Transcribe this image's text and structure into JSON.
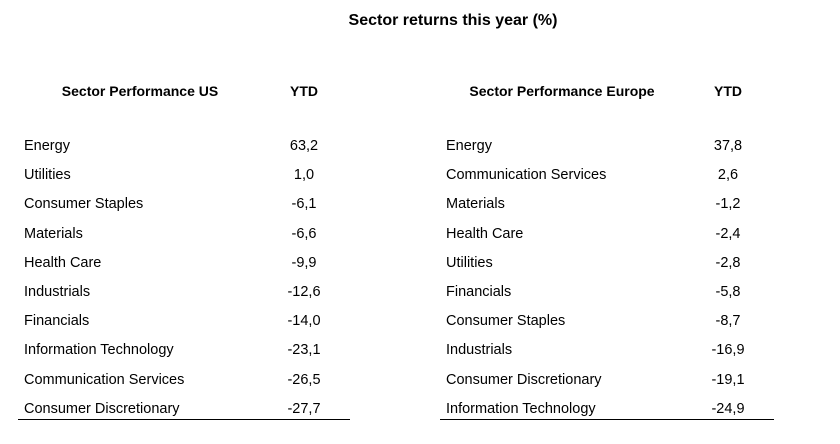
{
  "title": "Sector returns this year (%)",
  "us": {
    "header_sector": "Sector Performance US",
    "header_ytd": "YTD",
    "rows": [
      {
        "sector": "Energy",
        "ytd": "63,2"
      },
      {
        "sector": "Utilities",
        "ytd": "1,0"
      },
      {
        "sector": "Consumer Staples",
        "ytd": "-6,1"
      },
      {
        "sector": "Materials",
        "ytd": "-6,6"
      },
      {
        "sector": "Health Care",
        "ytd": "-9,9"
      },
      {
        "sector": "Industrials",
        "ytd": "-12,6"
      },
      {
        "sector": "Financials",
        "ytd": "-14,0"
      },
      {
        "sector": "Information Technology",
        "ytd": "-23,1"
      },
      {
        "sector": "Communication Services",
        "ytd": "-26,5"
      },
      {
        "sector": "Consumer Discretionary",
        "ytd": "-27,7"
      }
    ]
  },
  "europe": {
    "header_sector": "Sector Performance Europe",
    "header_ytd": "YTD",
    "rows": [
      {
        "sector": "Energy",
        "ytd": "37,8"
      },
      {
        "sector": "Communication Services",
        "ytd": "2,6"
      },
      {
        "sector": "Materials",
        "ytd": "-1,2"
      },
      {
        "sector": "Health Care",
        "ytd": "-2,4"
      },
      {
        "sector": "Utilities",
        "ytd": "-2,8"
      },
      {
        "sector": "Financials",
        "ytd": "-5,8"
      },
      {
        "sector": "Consumer Staples",
        "ytd": "-8,7"
      },
      {
        "sector": "Industrials",
        "ytd": "-16,9"
      },
      {
        "sector": "Consumer Discretionary",
        "ytd": "-19,1"
      },
      {
        "sector": "Information Technology",
        "ytd": "-24,9"
      }
    ]
  }
}
